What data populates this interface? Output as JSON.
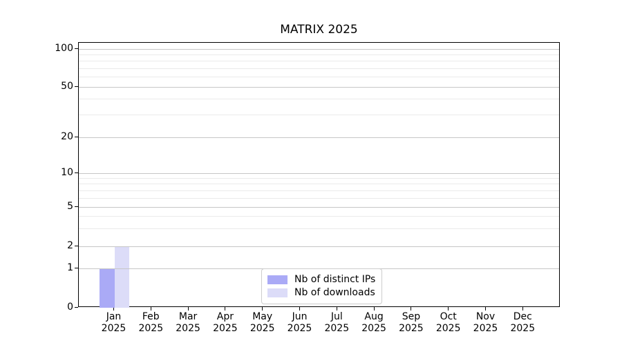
{
  "window": {
    "background": "#ffffff",
    "text_color": "#000000"
  },
  "chart_data": {
    "type": "bar",
    "title": "MATRIX 2025",
    "categories": [
      "Jan",
      "Feb",
      "Mar",
      "Apr",
      "May",
      "Jun",
      "Jul",
      "Aug",
      "Sep",
      "Oct",
      "Nov",
      "Dec"
    ],
    "category_year_line": "2025",
    "series": [
      {
        "name": "Nb of distinct IPs",
        "color": "#aaaaf6",
        "values": [
          1,
          0,
          0,
          0,
          0,
          0,
          0,
          0,
          0,
          0,
          0,
          0
        ]
      },
      {
        "name": "Nb of downloads",
        "color": "#dcdcf8",
        "values": [
          2,
          0,
          0,
          0,
          0,
          0,
          0,
          0,
          0,
          0,
          0,
          0
        ]
      }
    ],
    "y_axis": {
      "scale": "symlog",
      "ticks": [
        0,
        1,
        2,
        5,
        10,
        20,
        50,
        100
      ],
      "minor_gridlines": [
        3,
        4,
        6,
        7,
        8,
        9,
        30,
        40,
        60,
        70,
        80,
        90
      ],
      "ylim": [
        0,
        105
      ]
    },
    "x_axis": {
      "tick_count": 12
    },
    "legend": {
      "position": "lower center"
    },
    "grid": {
      "major_color": "#c6c6c6",
      "minor_color": "#eaeaea",
      "spine_color": "#000000"
    }
  }
}
